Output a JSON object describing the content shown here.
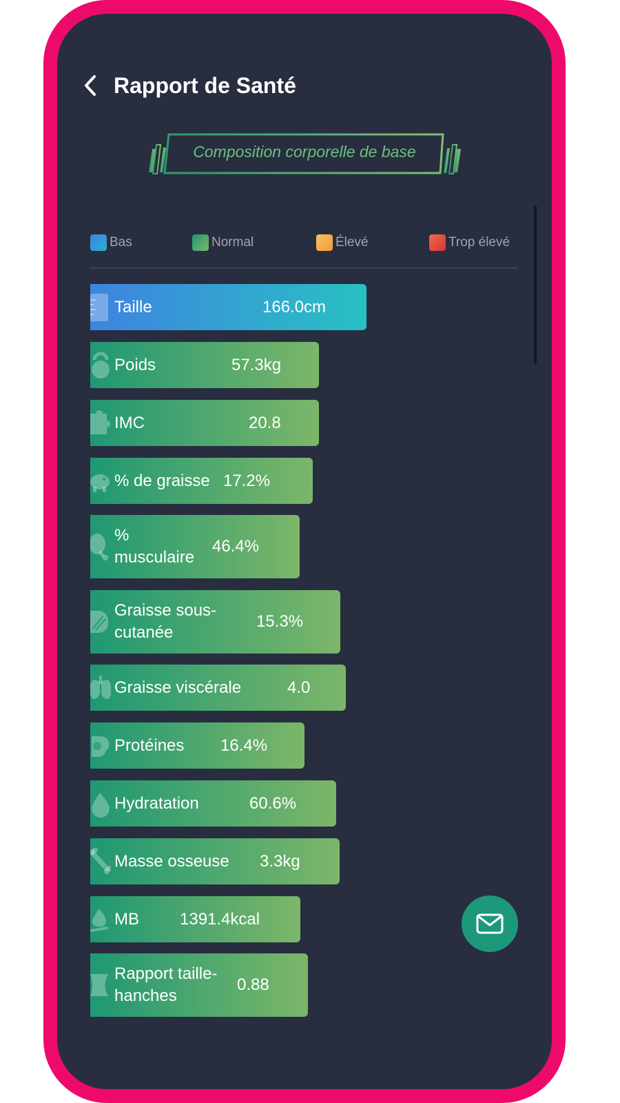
{
  "header": {
    "title": "Rapport de Santé"
  },
  "section": {
    "title": "Composition corporelle de base"
  },
  "legend": [
    {
      "label": "Bas",
      "color": "#3a8ce6"
    },
    {
      "label": "Normal",
      "color": "#3aa872"
    },
    {
      "label": "Élevé",
      "color": "#f5b04a"
    },
    {
      "label": "Trop élevé",
      "color": "#e5463e"
    }
  ],
  "metrics": [
    {
      "label": "Taille",
      "value": "166.0cm",
      "level": "Bas",
      "icon": "ruler-icon"
    },
    {
      "label": "Poids",
      "value": "57.3kg",
      "level": "Normal",
      "icon": "kettlebell-icon"
    },
    {
      "label": "IMC",
      "value": "20.8",
      "level": "Normal",
      "icon": "puzzle-icon"
    },
    {
      "label": "% de graisse",
      "value": "17.2%",
      "level": "Normal",
      "icon": "piggy-bank-icon"
    },
    {
      "label": "% musculaire",
      "value": "46.4%",
      "level": "Normal",
      "icon": "drumstick-icon"
    },
    {
      "label": "Graisse sous-cutanée",
      "value": "15.3%",
      "level": "Normal",
      "icon": "fat-layer-icon"
    },
    {
      "label": "Graisse viscérale",
      "value": "4.0",
      "level": "Normal",
      "icon": "lungs-icon"
    },
    {
      "label": "Protéines",
      "value": "16.4%",
      "level": "Normal",
      "icon": "egg-icon"
    },
    {
      "label": "Hydratation",
      "value": "60.6%",
      "level": "Normal",
      "icon": "water-drop-icon"
    },
    {
      "label": "Masse osseuse",
      "value": "3.3kg",
      "level": "Normal",
      "icon": "bone-icon"
    },
    {
      "label": "MB",
      "value": "1391.4kcal",
      "level": "Normal",
      "icon": "flame-icon"
    },
    {
      "label": "Rapport taille-hanches",
      "value": "0.88",
      "level": "Normal",
      "icon": "waist-icon"
    }
  ]
}
